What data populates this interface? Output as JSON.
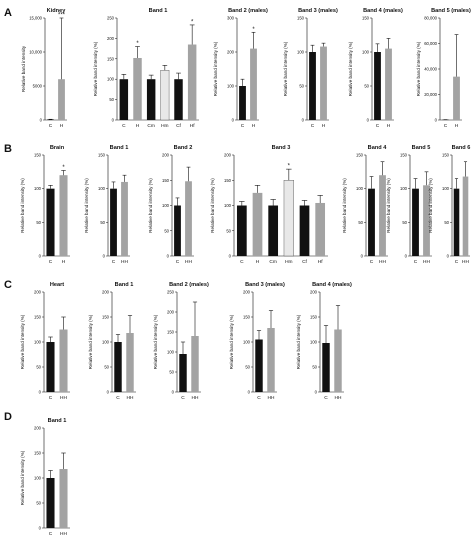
{
  "panel_labels": [
    "A",
    "B",
    "C",
    "D"
  ],
  "colors": {
    "dark": "#111111",
    "mid": "#a3a3a3",
    "pale": "#e8e8e8",
    "axis": "#111111"
  },
  "chart_data": [
    {
      "panel": "A",
      "type": "bar",
      "title": "Kidney",
      "ylabel": "Relative band intensity",
      "ylim": [
        0,
        15000
      ],
      "yticks": [
        {
          "v": 0,
          "label": "0"
        },
        {
          "v": 5000,
          "label": "5000"
        },
        {
          "v": 10000,
          "label": "10,000"
        },
        {
          "v": 15000,
          "label": "15,000"
        }
      ],
      "bars": [
        {
          "category": "C",
          "value": 80,
          "error": 30,
          "fill": "dark"
        },
        {
          "category": "H",
          "value": 6000,
          "error": 10000,
          "fill": "mid",
          "annotation": "***"
        }
      ]
    },
    {
      "panel": "A",
      "type": "bar",
      "title": "Band 1",
      "ylabel": "Relative band intensity (%)",
      "ylim": [
        0,
        250
      ],
      "yticks": [
        {
          "v": 0,
          "label": "0"
        },
        {
          "v": 50,
          "label": "50"
        },
        {
          "v": 100,
          "label": "100"
        },
        {
          "v": 150,
          "label": "150"
        },
        {
          "v": 200,
          "label": "200"
        },
        {
          "v": 250,
          "label": "250"
        }
      ],
      "bars": [
        {
          "category": "C",
          "value": 100,
          "error": 12,
          "fill": "dark"
        },
        {
          "category": "H",
          "value": 152,
          "error": 28,
          "fill": "mid",
          "annotation": "*"
        },
        {
          "category": "Cm",
          "value": 100,
          "error": 10,
          "fill": "dark"
        },
        {
          "category": "Hm",
          "value": 122,
          "error": 12,
          "fill": "pale"
        },
        {
          "category": "Cf",
          "value": 100,
          "error": 15,
          "fill": "dark"
        },
        {
          "category": "Hf",
          "value": 185,
          "error": 48,
          "fill": "mid",
          "annotation": "*"
        }
      ]
    },
    {
      "panel": "A",
      "type": "bar",
      "title": "Band 2 (males)",
      "ylabel": "Relative band intensity (%)",
      "ylim": [
        0,
        300
      ],
      "yticks": [
        {
          "v": 0,
          "label": "0"
        },
        {
          "v": 100,
          "label": "100"
        },
        {
          "v": 200,
          "label": "200"
        },
        {
          "v": 300,
          "label": "300"
        }
      ],
      "bars": [
        {
          "category": "C",
          "value": 100,
          "error": 20,
          "fill": "dark"
        },
        {
          "category": "H",
          "value": 210,
          "error": 48,
          "fill": "mid",
          "annotation": "*"
        }
      ]
    },
    {
      "panel": "A",
      "type": "bar",
      "title": "Band 3 (males)",
      "ylabel": "Relative band intensity (%)",
      "ylim": [
        0,
        150
      ],
      "yticks": [
        {
          "v": 0,
          "label": "0"
        },
        {
          "v": 50,
          "label": "50"
        },
        {
          "v": 100,
          "label": "100"
        },
        {
          "v": 150,
          "label": "150"
        }
      ],
      "bars": [
        {
          "category": "C",
          "value": 100,
          "error": 10,
          "fill": "dark"
        },
        {
          "category": "H",
          "value": 108,
          "error": 5,
          "fill": "mid"
        }
      ]
    },
    {
      "panel": "A",
      "type": "bar",
      "title": "Band 4 (males)",
      "ylabel": "Relative band intensity (%)",
      "ylim": [
        0,
        150
      ],
      "yticks": [
        {
          "v": 0,
          "label": "0"
        },
        {
          "v": 50,
          "label": "50"
        },
        {
          "v": 100,
          "label": "100"
        },
        {
          "v": 150,
          "label": "150"
        }
      ],
      "bars": [
        {
          "category": "C",
          "value": 100,
          "error": 12,
          "fill": "dark"
        },
        {
          "category": "H",
          "value": 105,
          "error": 15,
          "fill": "mid"
        }
      ]
    },
    {
      "panel": "A",
      "type": "bar",
      "title": "Band 5 (males)",
      "ylabel": "Relative band intensity (%)",
      "ylim": [
        0,
        80000
      ],
      "yticks": [
        {
          "v": 0,
          "label": "0"
        },
        {
          "v": 20000,
          "label": "20,000"
        },
        {
          "v": 40000,
          "label": "40,000"
        },
        {
          "v": 60000,
          "label": "60,000"
        },
        {
          "v": 80000,
          "label": "80,000"
        }
      ],
      "bars": [
        {
          "category": "C",
          "value": 200,
          "error": 100,
          "fill": "dark"
        },
        {
          "category": "H",
          "value": 34000,
          "error": 33000,
          "fill": "mid"
        }
      ]
    },
    {
      "panel": "B",
      "type": "bar",
      "title": "Brain",
      "ylabel": "Relative band intensity (%)",
      "ylim": [
        0,
        150
      ],
      "yticks": [
        {
          "v": 0,
          "label": "0"
        },
        {
          "v": 50,
          "label": "50"
        },
        {
          "v": 100,
          "label": "100"
        },
        {
          "v": 150,
          "label": "150"
        }
      ],
      "bars": [
        {
          "category": "C",
          "value": 100,
          "error": 5,
          "fill": "dark"
        },
        {
          "category": "H",
          "value": 120,
          "error": 7,
          "fill": "mid",
          "annotation": "*"
        }
      ]
    },
    {
      "panel": "B",
      "type": "bar",
      "title": "Band 1",
      "ylabel": "Relative band intensity (%)",
      "ylim": [
        0,
        150
      ],
      "yticks": [
        {
          "v": 0,
          "label": "0"
        },
        {
          "v": 50,
          "label": "50"
        },
        {
          "v": 100,
          "label": "100"
        },
        {
          "v": 150,
          "label": "150"
        }
      ],
      "bars": [
        {
          "category": "C",
          "value": 100,
          "error": 10,
          "fill": "dark"
        },
        {
          "category": "HH",
          "value": 110,
          "error": 10,
          "fill": "mid"
        }
      ]
    },
    {
      "panel": "B",
      "type": "bar",
      "title": "Band 2",
      "ylabel": "Relative band intensity (%)",
      "ylim": [
        0,
        200
      ],
      "yticks": [
        {
          "v": 0,
          "label": "0"
        },
        {
          "v": 50,
          "label": "50"
        },
        {
          "v": 100,
          "label": "100"
        },
        {
          "v": 150,
          "label": "150"
        },
        {
          "v": 200,
          "label": "200"
        }
      ],
      "bars": [
        {
          "category": "C",
          "value": 100,
          "error": 15,
          "fill": "dark"
        },
        {
          "category": "HH",
          "value": 148,
          "error": 28,
          "fill": "mid"
        }
      ]
    },
    {
      "panel": "B",
      "type": "bar",
      "title": "Band 3",
      "ylabel": "Relative band intensity (%)",
      "ylim": [
        0,
        200
      ],
      "yticks": [
        {
          "v": 0,
          "label": "0"
        },
        {
          "v": 50,
          "label": "50"
        },
        {
          "v": 100,
          "label": "100"
        },
        {
          "v": 150,
          "label": "150"
        },
        {
          "v": 200,
          "label": "200"
        }
      ],
      "bars": [
        {
          "category": "C",
          "value": 100,
          "error": 8,
          "fill": "dark"
        },
        {
          "category": "H",
          "value": 125,
          "error": 15,
          "fill": "mid"
        },
        {
          "category": "Cm",
          "value": 100,
          "error": 12,
          "fill": "dark"
        },
        {
          "category": "Hm",
          "value": 150,
          "error": 22,
          "fill": "pale",
          "annotation": "*"
        },
        {
          "category": "Cf",
          "value": 100,
          "error": 10,
          "fill": "dark"
        },
        {
          "category": "Hf",
          "value": 105,
          "error": 15,
          "fill": "mid"
        }
      ]
    },
    {
      "panel": "B",
      "type": "bar",
      "title": "Band 4",
      "ylabel": "Relative band intensity (%)",
      "ylim": [
        0,
        150
      ],
      "yticks": [
        {
          "v": 0,
          "label": "0"
        },
        {
          "v": 50,
          "label": "50"
        },
        {
          "v": 100,
          "label": "100"
        },
        {
          "v": 150,
          "label": "150"
        }
      ],
      "bars": [
        {
          "category": "C",
          "value": 100,
          "error": 18,
          "fill": "dark"
        },
        {
          "category": "HH",
          "value": 120,
          "error": 20,
          "fill": "mid"
        }
      ]
    },
    {
      "panel": "B",
      "type": "bar",
      "title": "Band 5",
      "ylabel": "Relative band intensity (%)",
      "ylim": [
        0,
        150
      ],
      "yticks": [
        {
          "v": 0,
          "label": "0"
        },
        {
          "v": 50,
          "label": "50"
        },
        {
          "v": 100,
          "label": "100"
        },
        {
          "v": 150,
          "label": "150"
        }
      ],
      "bars": [
        {
          "category": "C",
          "value": 100,
          "error": 15,
          "fill": "dark"
        },
        {
          "category": "HH",
          "value": 105,
          "error": 20,
          "fill": "mid"
        }
      ]
    },
    {
      "panel": "B",
      "type": "bar",
      "title": "Band 6",
      "ylabel": "Relative band intensity (%)",
      "ylim": [
        0,
        150
      ],
      "yticks": [
        {
          "v": 0,
          "label": "0"
        },
        {
          "v": 50,
          "label": "50"
        },
        {
          "v": 100,
          "label": "100"
        },
        {
          "v": 150,
          "label": "150"
        }
      ],
      "bars": [
        {
          "category": "C",
          "value": 100,
          "error": 15,
          "fill": "dark"
        },
        {
          "category": "HH",
          "value": 118,
          "error": 22,
          "fill": "mid"
        }
      ]
    },
    {
      "panel": "C",
      "type": "bar",
      "title": "Heart",
      "ylabel": "Relative band intensity (%)",
      "ylim": [
        0,
        200
      ],
      "yticks": [
        {
          "v": 0,
          "label": "0"
        },
        {
          "v": 50,
          "label": "50"
        },
        {
          "v": 100,
          "label": "100"
        },
        {
          "v": 150,
          "label": "150"
        },
        {
          "v": 200,
          "label": "200"
        }
      ],
      "bars": [
        {
          "category": "C",
          "value": 100,
          "error": 10,
          "fill": "dark"
        },
        {
          "category": "HH",
          "value": 125,
          "error": 25,
          "fill": "mid"
        }
      ]
    },
    {
      "panel": "C",
      "type": "bar",
      "title": "Band 1",
      "ylabel": "Relative band intensity (%)",
      "ylim": [
        0,
        200
      ],
      "yticks": [
        {
          "v": 0,
          "label": "0"
        },
        {
          "v": 50,
          "label": "50"
        },
        {
          "v": 100,
          "label": "100"
        },
        {
          "v": 150,
          "label": "150"
        },
        {
          "v": 200,
          "label": "200"
        }
      ],
      "bars": [
        {
          "category": "C",
          "value": 100,
          "error": 15,
          "fill": "dark"
        },
        {
          "category": "HH",
          "value": 118,
          "error": 35,
          "fill": "mid"
        }
      ]
    },
    {
      "panel": "C",
      "type": "bar",
      "title": "Band 2 (males)",
      "ylabel": "Relative band intensity (%)",
      "ylim": [
        0,
        250
      ],
      "yticks": [
        {
          "v": 0,
          "label": "0"
        },
        {
          "v": 50,
          "label": "50"
        },
        {
          "v": 100,
          "label": "100"
        },
        {
          "v": 150,
          "label": "150"
        },
        {
          "v": 200,
          "label": "200"
        },
        {
          "v": 250,
          "label": "250"
        }
      ],
      "bars": [
        {
          "category": "C",
          "value": 95,
          "error": 30,
          "fill": "dark"
        },
        {
          "category": "HH",
          "value": 140,
          "error": 85,
          "fill": "mid"
        }
      ]
    },
    {
      "panel": "C",
      "type": "bar",
      "title": "Band 3 (males)",
      "ylabel": "Relative band intensity (%)",
      "ylim": [
        0,
        200
      ],
      "yticks": [
        {
          "v": 0,
          "label": "0"
        },
        {
          "v": 50,
          "label": "50"
        },
        {
          "v": 100,
          "label": "100"
        },
        {
          "v": 150,
          "label": "150"
        },
        {
          "v": 200,
          "label": "200"
        }
      ],
      "bars": [
        {
          "category": "C",
          "value": 105,
          "error": 18,
          "fill": "dark"
        },
        {
          "category": "HH",
          "value": 128,
          "error": 35,
          "fill": "mid"
        }
      ]
    },
    {
      "panel": "C",
      "type": "bar",
      "title": "Band 4 (males)",
      "ylabel": "Relative band intensity (%)",
      "ylim": [
        0,
        200
      ],
      "yticks": [
        {
          "v": 0,
          "label": "0"
        },
        {
          "v": 50,
          "label": "50"
        },
        {
          "v": 100,
          "label": "100"
        },
        {
          "v": 150,
          "label": "150"
        },
        {
          "v": 200,
          "label": "200"
        }
      ],
      "bars": [
        {
          "category": "C",
          "value": 98,
          "error": 35,
          "fill": "dark"
        },
        {
          "category": "HH",
          "value": 125,
          "error": 48,
          "fill": "mid"
        }
      ]
    },
    {
      "panel": "D",
      "type": "bar",
      "title": "Band 1",
      "ylabel": "Relative band intensity (%)",
      "ylim": [
        0,
        200
      ],
      "yticks": [
        {
          "v": 0,
          "label": "0"
        },
        {
          "v": 50,
          "label": "50"
        },
        {
          "v": 100,
          "label": "100"
        },
        {
          "v": 150,
          "label": "150"
        },
        {
          "v": 200,
          "label": "200"
        }
      ],
      "bars": [
        {
          "category": "C",
          "value": 100,
          "error": 15,
          "fill": "dark"
        },
        {
          "category": "HH",
          "value": 118,
          "error": 32,
          "fill": "mid"
        }
      ]
    }
  ]
}
